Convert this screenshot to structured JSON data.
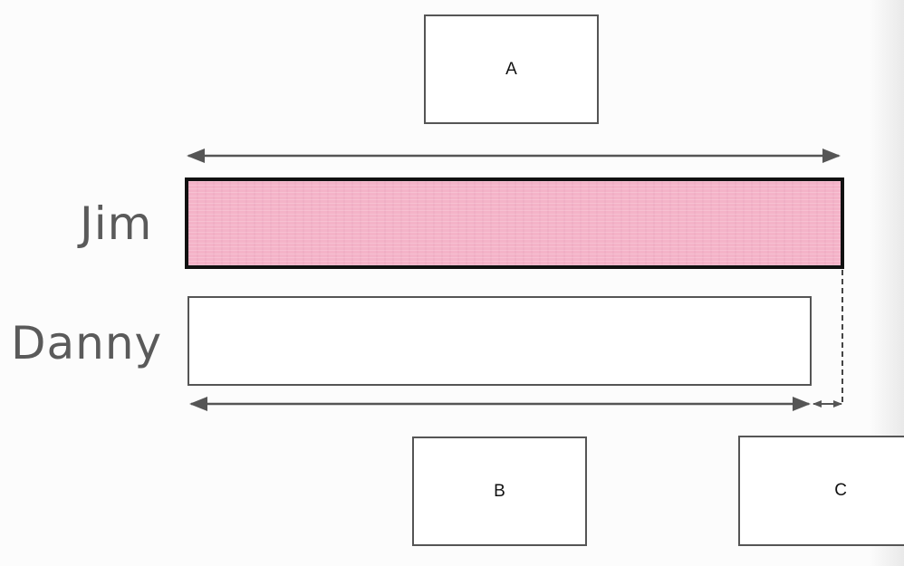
{
  "boxes": {
    "a": "A",
    "b": "B",
    "c": "C"
  },
  "rows": {
    "jim": {
      "label": "Jim",
      "fill_color": "#f4b3c8"
    },
    "danny": {
      "label": "Danny",
      "fill_color": "#ffffff"
    }
  }
}
